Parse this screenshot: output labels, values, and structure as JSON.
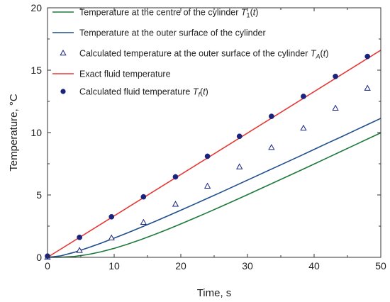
{
  "chart_data": {
    "type": "line",
    "xlabel": "Time, s",
    "ylabel": "Temperature, °C",
    "xlim": [
      0,
      50
    ],
    "ylim": [
      0,
      20
    ],
    "xticks": [
      "0",
      "10",
      "20",
      "30",
      "40",
      "50"
    ],
    "yticks": [
      "0",
      "5",
      "10",
      "15",
      "20"
    ],
    "grid": false,
    "legend_position": "top-left",
    "series": [
      {
        "name": "Temperature at the centre of the cylinder T1(t)",
        "label_parts": [
          "Temperature at the centre of the cylinder ",
          "T",
          "1",
          "(",
          "t",
          ")"
        ],
        "kind": "line",
        "color": "#1e7a3c",
        "x": [
          0,
          2,
          4,
          6,
          8,
          10,
          12,
          14,
          16,
          18,
          20,
          22,
          24,
          26,
          28,
          30,
          32,
          34,
          36,
          38,
          40,
          42,
          44,
          46,
          48,
          50
        ],
        "y": [
          0.0,
          0.01,
          0.07,
          0.22,
          0.44,
          0.72,
          1.05,
          1.42,
          1.82,
          2.24,
          2.68,
          3.13,
          3.59,
          4.06,
          4.54,
          5.02,
          5.51,
          6.0,
          6.49,
          6.98,
          7.48,
          7.98,
          8.48,
          8.98,
          9.48,
          9.98
        ]
      },
      {
        "name": "Temperature at the outer surface of the cylinder",
        "label_parts": [
          "Temperature at the outer surface of the cylinder"
        ],
        "kind": "line",
        "color": "#1f4e8c",
        "x": [
          0,
          2,
          4,
          6,
          8,
          10,
          12,
          14,
          16,
          18,
          20,
          22,
          24,
          26,
          28,
          30,
          32,
          34,
          36,
          38,
          40,
          42,
          44,
          46,
          48,
          50
        ],
        "y": [
          0.0,
          0.12,
          0.4,
          0.75,
          1.13,
          1.54,
          1.96,
          2.4,
          2.85,
          3.31,
          3.78,
          4.25,
          4.73,
          5.21,
          5.7,
          6.19,
          6.68,
          7.17,
          7.66,
          8.15,
          8.65,
          9.15,
          9.64,
          10.14,
          10.64,
          11.14
        ]
      },
      {
        "name": "Calculated temperature at the outer surface of the cylinder TA(t)",
        "label_parts": [
          "Calculated temperature at the outer surface of the cylinder ",
          "T",
          "A",
          "(",
          "t",
          ")"
        ],
        "kind": "marker-triangle-open",
        "color": "#1a237e",
        "x": [
          0,
          4.8,
          9.6,
          14.4,
          19.2,
          24.0,
          28.8,
          33.6,
          38.4,
          43.2,
          48.0
        ],
        "y": [
          0.0,
          0.55,
          1.55,
          2.8,
          4.25,
          5.7,
          7.25,
          8.8,
          10.35,
          11.95,
          13.55
        ]
      },
      {
        "name": "Exact fluid temperature",
        "label_parts": [
          "Exact fluid temperature"
        ],
        "kind": "line",
        "color": "#e53935",
        "x": [
          0,
          50
        ],
        "y": [
          0,
          16.6
        ]
      },
      {
        "name": "Calculated fluid temperature Tf(t)",
        "label_parts": [
          "Calculated fluid temperature ",
          "T",
          "f",
          "(",
          "t",
          ")"
        ],
        "kind": "marker-circle-filled",
        "color": "#1a237e",
        "x": [
          0,
          4.8,
          9.6,
          14.4,
          19.2,
          24.0,
          28.8,
          33.6,
          38.4,
          43.2,
          48.0
        ],
        "y": [
          0.1,
          1.6,
          3.25,
          4.85,
          6.45,
          8.1,
          9.7,
          11.3,
          12.9,
          14.5,
          16.1
        ]
      }
    ]
  }
}
